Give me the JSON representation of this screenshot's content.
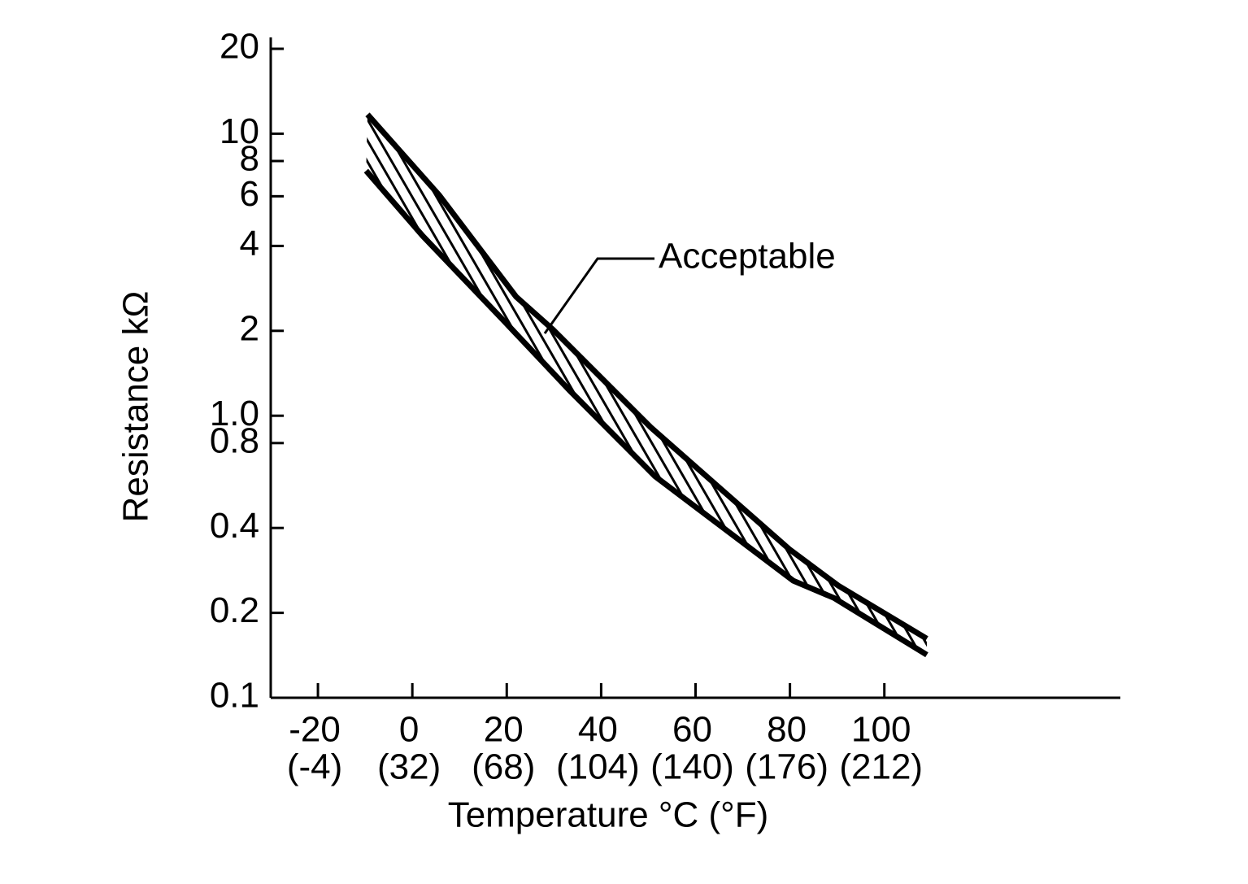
{
  "chart_data": {
    "type": "band",
    "x_label": "Temperature °C (°F)",
    "y_label": "Resistance kΩ",
    "annotation": "Acceptable",
    "xlim": [
      -30,
      150
    ],
    "xticks": [
      -20,
      0,
      20,
      40,
      60,
      80,
      100
    ],
    "xtick_sublabels": [
      "(-4)",
      "(32)",
      "(68)",
      "(104)",
      "(140)",
      "(176)",
      "(212)"
    ],
    "ylim": [
      0.1,
      20
    ],
    "yscale": "log",
    "yticks": [
      0.1,
      0.2,
      0.4,
      0.8,
      {
        "value": 1,
        "label": "1.0"
      },
      2,
      4,
      6,
      8,
      10,
      20
    ],
    "color": "#000000",
    "series": [
      {
        "x": [
          -9.5,
          5.7,
          22,
          29.8,
          50.5,
          79.8,
          90.2,
          109
        ],
        "values": [
          11.7,
          6.05,
          2.64,
          2.02,
          0.91,
          0.337,
          0.25,
          0.162
        ]
      },
      {
        "x": [
          -9.8,
          2.2,
          19.5,
          33.3,
          51.4,
          80.7,
          89.3,
          109
        ],
        "values": [
          7.39,
          4.34,
          2.16,
          1.23,
          0.61,
          0.26,
          0.226,
          0.142
        ]
      }
    ]
  }
}
